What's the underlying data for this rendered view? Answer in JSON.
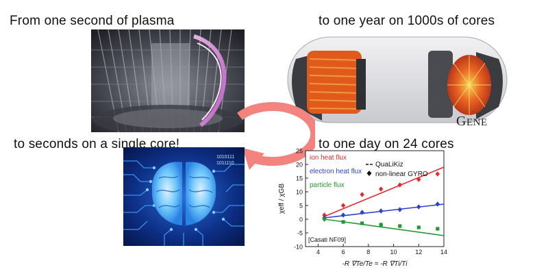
{
  "captions": {
    "top_left": "From one second of plasma",
    "top_right": "to one year on 1000s of cores",
    "bottom_left": "to seconds on a single core!",
    "bottom_right": "to one day on 24 cores"
  },
  "logo": {
    "first": "G",
    "rest": "ENE"
  },
  "brain_binary": {
    "line1": "1010111",
    "line2": "1011110"
  },
  "colors": {
    "ion": "#e3292d",
    "electron": "#2b3fd0",
    "particle": "#1f9a2f",
    "arrow": "#f2837f"
  },
  "chart_data": {
    "type": "line",
    "title": "",
    "xlabel": "-R ∇Te/Te = -R ∇Ti/Ti",
    "ylabel": "χeff / χGB",
    "xlim": [
      3,
      14
    ],
    "ylim": [
      -10,
      25
    ],
    "xticks": [
      "4",
      "6",
      "8",
      "10",
      "12",
      "14"
    ],
    "yticks": [
      "-10",
      "-5",
      "0",
      "5",
      "10",
      "15",
      "20",
      "25"
    ],
    "legend_labels": {
      "line_label": "QuaLiKiz",
      "marker_label": "non-linear GYRO"
    },
    "annotation": "[Casati NF09]",
    "series": [
      {
        "name": "ion heat flux",
        "color": "#e3292d",
        "line": {
          "x": [
            4.5,
            14
          ],
          "y": [
            1.0,
            19.0
          ]
        },
        "markers": {
          "x": [
            4.5,
            6,
            7.5,
            9,
            10.5,
            12,
            13.5
          ],
          "y": [
            1.5,
            5.0,
            9.0,
            11.0,
            12.5,
            14.5,
            16.5
          ]
        }
      },
      {
        "name": "electron heat flux",
        "color": "#2b3fd0",
        "line": {
          "x": [
            4.5,
            14
          ],
          "y": [
            0.5,
            5.5
          ]
        },
        "markers": {
          "x": [
            4.5,
            6,
            7.5,
            9,
            10.5,
            12,
            13.5
          ],
          "y": [
            0.5,
            1.5,
            2.5,
            3.0,
            3.5,
            4.5,
            5.5
          ]
        }
      },
      {
        "name": "particle flux",
        "color": "#1f9a2f",
        "line": {
          "x": [
            4.5,
            14
          ],
          "y": [
            0.0,
            -6.0
          ]
        },
        "markers": {
          "x": [
            4.5,
            6,
            7.5,
            9,
            10.5,
            12,
            13.5
          ],
          "y": [
            0.0,
            -1.0,
            -1.5,
            -2.0,
            -2.5,
            -3.0,
            -3.5
          ]
        }
      }
    ]
  }
}
